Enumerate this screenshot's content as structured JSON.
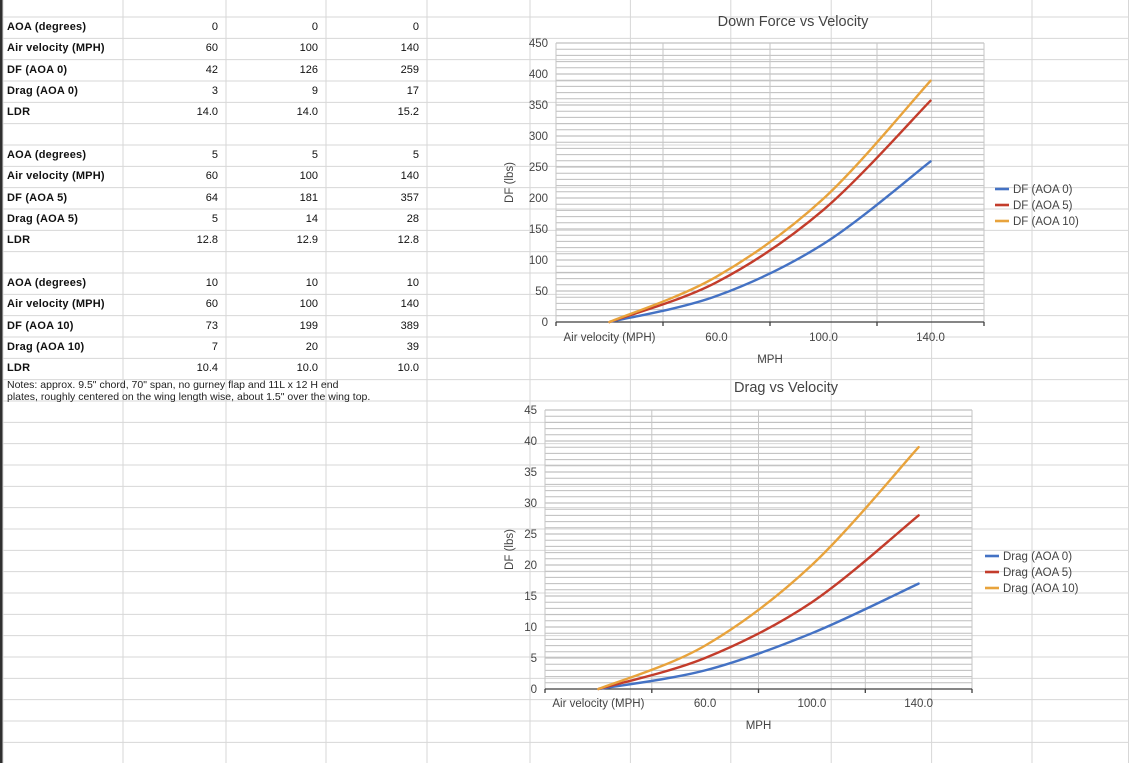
{
  "sheet": {
    "table": {
      "rows": [
        {
          "label": "AOA (degrees)",
          "values": [
            "0",
            "0",
            "0"
          ]
        },
        {
          "label": "Air velocity (MPH)",
          "values": [
            "60",
            "100",
            "140"
          ]
        },
        {
          "label": "DF (AOA 0)",
          "values": [
            "42",
            "126",
            "259"
          ]
        },
        {
          "label": "Drag (AOA 0)",
          "values": [
            "3",
            "9",
            "17"
          ]
        },
        {
          "label": "LDR",
          "values": [
            "14.0",
            "14.0",
            "15.2"
          ]
        },
        {
          "label": "",
          "values": [
            "",
            "",
            ""
          ]
        },
        {
          "label": "AOA (degrees)",
          "values": [
            "5",
            "5",
            "5"
          ]
        },
        {
          "label": "Air velocity (MPH)",
          "values": [
            "60",
            "100",
            "140"
          ]
        },
        {
          "label": "DF (AOA 5)",
          "values": [
            "64",
            "181",
            "357"
          ]
        },
        {
          "label": "Drag (AOA 5)",
          "values": [
            "5",
            "14",
            "28"
          ]
        },
        {
          "label": "LDR",
          "values": [
            "12.8",
            "12.9",
            "12.8"
          ]
        },
        {
          "label": "",
          "values": [
            "",
            "",
            ""
          ]
        },
        {
          "label": "AOA (degrees)",
          "values": [
            "10",
            "10",
            "10"
          ]
        },
        {
          "label": "Air velocity (MPH)",
          "values": [
            "60",
            "100",
            "140"
          ]
        },
        {
          "label": "DF (AOA 10)",
          "values": [
            "73",
            "199",
            "389"
          ]
        },
        {
          "label": "Drag (AOA 10)",
          "values": [
            "7",
            "20",
            "39"
          ]
        },
        {
          "label": "LDR",
          "values": [
            "10.4",
            "10.0",
            "10.0"
          ]
        }
      ],
      "notes": "Notes: approx. 9.5\" chord, 70\" span, no gurney flap and 11L x 12 H end plates, roughly centered on the wing length wise, about 1.5\" over the wing top."
    }
  },
  "colors": {
    "series_blue": "#4472C4",
    "series_red": "#C33C2B",
    "series_orange": "#E8A33C",
    "chart_text": "#444444",
    "sheet_grid": "#d7d7d7",
    "chart_minor_grid": "#bdbdbd",
    "chart_major_grid": "#b0b0b0",
    "chart_vert_grid": "#c6c6c6",
    "axis_line": "#3f3f3f"
  },
  "chart_data": [
    {
      "type": "line",
      "title": "Down Force vs Velocity",
      "categories": [
        "Air velocity (MPH)",
        "60.0",
        "100.0",
        "140.0"
      ],
      "series": [
        {
          "name": "DF (AOA 0)",
          "color": "#4472C4",
          "values": [
            0,
            42,
            126,
            259
          ]
        },
        {
          "name": "DF (AOA 5)",
          "color": "#C33C2B",
          "values": [
            0,
            64,
            181,
            357
          ]
        },
        {
          "name": "DF (AOA 10)",
          "color": "#E8A33C",
          "values": [
            0,
            73,
            199,
            389
          ]
        }
      ],
      "xlabel": "MPH",
      "ylabel": "DF (lbs)",
      "ylim": [
        0,
        450
      ],
      "ymajor": 50,
      "yminor": 10,
      "grid": true,
      "legend_position": "right",
      "smooth": true
    },
    {
      "type": "line",
      "title": "Drag vs Velocity",
      "categories": [
        "Air velocity (MPH)",
        "60.0",
        "100.0",
        "140.0"
      ],
      "series": [
        {
          "name": "Drag (AOA 0)",
          "color": "#4472C4",
          "values": [
            0,
            3,
            9,
            17
          ]
        },
        {
          "name": "Drag (AOA 5)",
          "color": "#C33C2B",
          "values": [
            0,
            5,
            14,
            28
          ]
        },
        {
          "name": "Drag (AOA 10)",
          "color": "#E8A33C",
          "values": [
            0,
            7,
            20,
            39
          ]
        }
      ],
      "xlabel": "MPH",
      "ylabel": "DF (lbs)",
      "ylim": [
        0,
        45
      ],
      "ymajor": 5,
      "yminor": 1,
      "grid": true,
      "legend_position": "right",
      "smooth": true
    }
  ]
}
